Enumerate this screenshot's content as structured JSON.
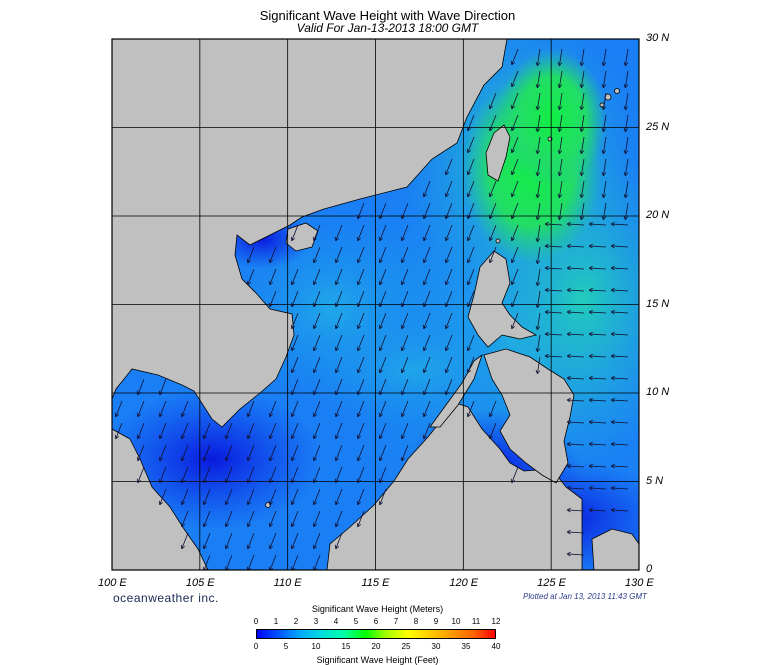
{
  "title": "Significant Wave Height with Wave Direction",
  "subtitle": "Valid For Jan-13-2013 18:00 GMT",
  "map": {
    "lon_range": [
      100,
      130
    ],
    "lat_range": [
      0,
      30
    ],
    "lat_labels": [
      "30 N",
      "25 N",
      "20 N",
      "15 N",
      "10 N",
      "5 N",
      "0"
    ],
    "lon_labels": [
      "100 E",
      "105 E",
      "110 E",
      "115 E",
      "120 E",
      "125 E",
      "130 E"
    ],
    "land_color": "#c0c0c0",
    "grid_color": "#000000"
  },
  "branding": "oceanweather inc.",
  "plotted_note": "Plotted at Jan 13, 2013 11:43 GMT",
  "colorbar": {
    "title_meters": "Significant Wave Height (Meters)",
    "title_feet": "Significant Wave Height (Feet)",
    "meter_ticks": [
      "0",
      "1",
      "2",
      "3",
      "4",
      "5",
      "6",
      "7",
      "8",
      "9",
      "10",
      "11",
      "12"
    ],
    "feet_ticks": [
      "0",
      "5",
      "10",
      "15",
      "20",
      "25",
      "30",
      "35",
      "40"
    ],
    "colors": [
      "#0000ff",
      "#0055ff",
      "#00aaff",
      "#00dddd",
      "#00ffaa",
      "#00ff00",
      "#aaff00",
      "#ffff00",
      "#ffcc00",
      "#ff9900",
      "#ff6600",
      "#ff0000"
    ]
  }
}
